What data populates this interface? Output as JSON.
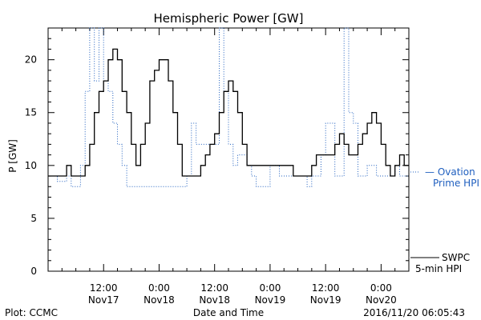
{
  "chart_data": {
    "type": "line",
    "title": "Hemispheric Power [GW]",
    "ylabel": "P [GW]",
    "xlabel": "Date and Time",
    "ylim": [
      0,
      23
    ],
    "yticks": [
      0,
      5,
      10,
      15,
      20
    ],
    "xticks": [
      {
        "hour": 12,
        "time": "12:00",
        "date": "Nov17"
      },
      {
        "hour": 24,
        "time": "0:00",
        "date": "Nov18"
      },
      {
        "hour": 36,
        "time": "12:00",
        "date": "Nov18"
      },
      {
        "hour": 48,
        "time": "0:00",
        "date": "Nov19"
      },
      {
        "hour": 60,
        "time": "12:00",
        "date": "Nov19"
      },
      {
        "hour": 72,
        "time": "0:00",
        "date": "Nov20"
      }
    ],
    "xlim_hours": [
      0,
      78
    ],
    "series": [
      {
        "name": "Ovation Prime HPI",
        "label_line1": "— Ovation",
        "label_line2": "Prime HPI",
        "color": "#1f5fbf",
        "dash": "dotted",
        "x": [
          0,
          2,
          3,
          4,
          5,
          7,
          8,
          9,
          10,
          11,
          12,
          13,
          14,
          15,
          16,
          17,
          18,
          19,
          20,
          21,
          22,
          23,
          24,
          25,
          26,
          27,
          28,
          29,
          30,
          31,
          32,
          33,
          34,
          35,
          36,
          37,
          38,
          39,
          40,
          41,
          42,
          43,
          44,
          45,
          46,
          47,
          48,
          49,
          50,
          51,
          52,
          53,
          54,
          55,
          56,
          57,
          58,
          59,
          60,
          61,
          62,
          63,
          64,
          65,
          66,
          67,
          68,
          69,
          70,
          71,
          72,
          73,
          74,
          75,
          76,
          77
        ],
        "y": [
          9,
          8.5,
          8.5,
          9,
          8,
          10,
          17,
          23,
          18,
          23,
          18,
          17,
          14,
          12,
          10,
          8,
          8,
          8,
          8,
          8,
          8,
          8,
          8,
          8,
          8,
          8,
          8,
          8,
          9,
          14,
          12,
          12,
          12,
          12,
          12,
          23,
          17,
          12,
          10,
          11,
          11,
          10,
          9,
          8,
          8,
          8,
          10,
          10,
          9,
          9,
          9,
          9,
          9,
          9,
          8,
          9,
          9,
          11,
          14,
          14,
          9,
          9,
          23,
          15,
          14,
          9,
          9,
          10,
          10,
          9,
          9,
          9,
          9,
          10,
          9,
          9
        ]
      },
      {
        "name": "SWPC 5-min HPI",
        "label_line1": "SWPC",
        "label_line2": "5-min HPI",
        "color": "#000000",
        "dash": "solid",
        "x": [
          0,
          1,
          2,
          3,
          4,
          5,
          6,
          7,
          8,
          9,
          10,
          11,
          12,
          13,
          14,
          15,
          16,
          17,
          18,
          19,
          20,
          21,
          22,
          23,
          24,
          25,
          26,
          27,
          28,
          29,
          30,
          31,
          32,
          33,
          34,
          35,
          36,
          37,
          38,
          39,
          40,
          41,
          42,
          43,
          44,
          45,
          46,
          47,
          48,
          49,
          50,
          51,
          52,
          53,
          54,
          55,
          56,
          57,
          58,
          59,
          60,
          61,
          62,
          63,
          64,
          65,
          66,
          67,
          68,
          69,
          70,
          71,
          72,
          73,
          74,
          75,
          76,
          77
        ],
        "y": [
          9,
          9,
          9,
          9,
          10,
          9,
          9,
          9,
          10,
          12,
          15,
          17,
          18,
          20,
          21,
          20,
          17,
          15,
          12,
          10,
          12,
          14,
          18,
          19,
          20,
          20,
          18,
          15,
          12,
          9,
          9,
          9,
          9,
          10,
          11,
          12,
          13,
          15,
          17,
          18,
          17,
          15,
          12,
          10,
          10,
          10,
          10,
          10,
          10,
          10,
          10,
          10,
          10,
          9,
          9,
          9,
          9,
          10,
          11,
          11,
          11,
          11,
          12,
          13,
          12,
          11,
          11,
          12,
          13,
          14,
          15,
          14,
          12,
          10,
          9,
          10,
          11,
          10
        ]
      }
    ],
    "legend": "right",
    "grid": false
  },
  "footer": {
    "left": "Plot: CCMC",
    "center": "Date and Time",
    "right": "2016/11/20 06:05:43"
  }
}
